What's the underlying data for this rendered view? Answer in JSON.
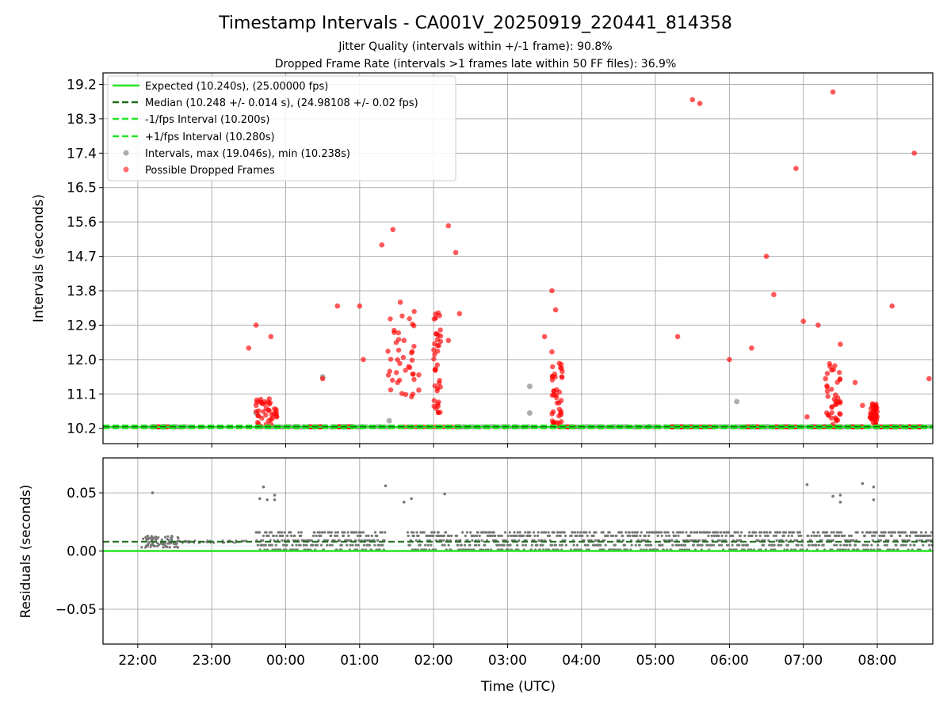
{
  "figure": {
    "title": "Timestamp Intervals - CA001V_20250919_220441_814358",
    "subtitle_1": "Jitter Quality (intervals within +/-1 frame): 90.8%",
    "subtitle_2": "Dropped Frame Rate (intervals >1 frames late within 50 FF files): 36.9%"
  },
  "chart_data": [
    {
      "type": "scatter",
      "panel": "top",
      "ylabel": "Intervals (seconds)",
      "x_unit": "hours since 22:00 UTC",
      "xlim": [
        -0.47,
        10.75
      ],
      "ylim": [
        9.8,
        19.5
      ],
      "yticks": [
        10.2,
        11.1,
        12.0,
        12.9,
        13.8,
        14.7,
        15.6,
        16.5,
        17.4,
        18.3,
        19.2
      ],
      "ytick_labels": [
        "10.2",
        "11.1",
        "12.0",
        "12.9",
        "13.8",
        "14.7",
        "15.6",
        "16.5",
        "17.4",
        "18.3",
        "19.2"
      ],
      "grid": true,
      "legend_position": "top-left",
      "legend": [
        {
          "label": "Expected (10.240s), (25.00000 fps)",
          "style": "solid",
          "color": "#22e622"
        },
        {
          "label": "Median (10.248 +/- 0.014 s), (24.98108 +/- 0.02 fps)",
          "style": "dashed",
          "color": "#1a6b1a"
        },
        {
          "label": "-1/fps Interval (10.200s)",
          "style": "dashed",
          "color": "#22e622"
        },
        {
          "label": "+1/fps Interval (10.280s)",
          "style": "dashed",
          "color": "#22e622"
        },
        {
          "label": "Intervals, max (19.046s), min (10.238s)",
          "style": "marker",
          "color": "#999999"
        },
        {
          "label": "Possible Dropped Frames",
          "style": "marker",
          "color": "#ff3333"
        }
      ],
      "lines": {
        "expected": 10.24,
        "median": 10.248,
        "minus_1fps": 10.2,
        "plus_1fps": 10.28
      },
      "dropped_frames": [
        [
          3.05,
          12.0
        ],
        [
          3.3,
          15.0
        ],
        [
          3.45,
          15.4
        ],
        [
          3.55,
          13.5
        ],
        [
          3.6,
          12.5
        ],
        [
          4.2,
          15.5
        ],
        [
          4.3,
          14.8
        ],
        [
          4.35,
          13.2
        ],
        [
          4.2,
          12.5
        ],
        [
          2.5,
          11.5
        ],
        [
          3.0,
          13.4
        ],
        [
          5.6,
          13.8
        ],
        [
          5.65,
          13.3
        ],
        [
          5.5,
          12.6
        ],
        [
          5.6,
          12.2
        ],
        [
          5.7,
          11.9
        ],
        [
          1.6,
          12.9
        ],
        [
          1.8,
          12.6
        ],
        [
          1.5,
          12.3
        ],
        [
          1.6,
          10.8
        ],
        [
          2.7,
          13.4
        ],
        [
          3.8,
          11.2
        ],
        [
          3.8,
          11.6
        ],
        [
          7.3,
          12.6
        ],
        [
          8.0,
          12.0
        ],
        [
          8.3,
          12.3
        ],
        [
          8.5,
          14.7
        ],
        [
          8.6,
          13.7
        ],
        [
          7.5,
          18.8
        ],
        [
          7.6,
          18.7
        ],
        [
          8.9,
          17.0
        ],
        [
          9.0,
          13.0
        ],
        [
          9.2,
          12.9
        ],
        [
          9.3,
          11.5
        ],
        [
          9.4,
          19.0
        ],
        [
          9.5,
          12.4
        ],
        [
          9.7,
          11.4
        ],
        [
          9.8,
          10.8
        ],
        [
          10.2,
          13.4
        ],
        [
          10.5,
          17.4
        ],
        [
          10.7,
          11.5
        ],
        [
          9.05,
          10.5
        ]
      ],
      "intervals_gray_points": [
        [
          2.5,
          11.55
        ],
        [
          5.3,
          11.3
        ],
        [
          5.3,
          10.6
        ],
        [
          8.1,
          10.9
        ],
        [
          1.6,
          10.6
        ],
        [
          3.4,
          10.4
        ]
      ]
    },
    {
      "type": "scatter",
      "panel": "bottom",
      "xlabel": "Time (UTC)",
      "ylabel": "Residuals (seconds)",
      "xlim": [
        -0.47,
        10.75
      ],
      "ylim": [
        -0.08,
        0.08
      ],
      "yticks": [
        -0.05,
        0.0,
        0.05
      ],
      "ytick_labels": [
        "−0.05",
        "0.00",
        "0.05"
      ],
      "xticks": [
        0,
        1,
        2,
        3,
        4,
        5,
        6,
        7,
        8,
        9,
        10
      ],
      "xtick_labels": [
        "22:00",
        "23:00",
        "00:00",
        "01:00",
        "02:00",
        "03:00",
        "04:00",
        "05:00",
        "06:00",
        "07:00",
        "08:00"
      ],
      "grid": true,
      "lines": {
        "expected": 0.0,
        "median": 0.008
      },
      "residual_outliers": [
        [
          0.2,
          0.05
        ],
        [
          1.7,
          0.055
        ],
        [
          1.65,
          0.045
        ],
        [
          1.75,
          0.044
        ],
        [
          1.85,
          0.048
        ],
        [
          1.85,
          0.044
        ],
        [
          3.35,
          0.056
        ],
        [
          3.6,
          0.042
        ],
        [
          3.7,
          0.045
        ],
        [
          4.15,
          0.049
        ],
        [
          9.05,
          0.057
        ],
        [
          9.4,
          0.047
        ],
        [
          9.5,
          0.048
        ],
        [
          9.5,
          0.042
        ],
        [
          9.8,
          0.058
        ],
        [
          9.95,
          0.055
        ],
        [
          9.95,
          0.044
        ]
      ]
    }
  ]
}
